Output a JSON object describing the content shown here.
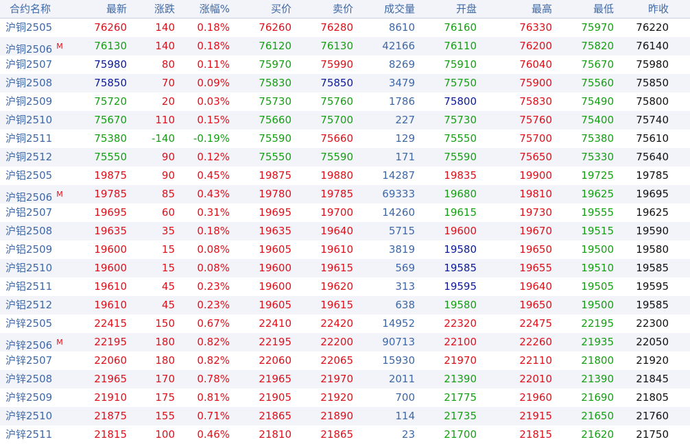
{
  "colors": {
    "up": "#e0101a",
    "down": "#14a012",
    "flat": "#0c1a9a",
    "volume": "#3e68a8",
    "prev_close": "#111111",
    "header_text": "#3e68a8",
    "header_bg": "#f2f4fa",
    "stripe": "#f2f4fa"
  },
  "columns": [
    "合约名称",
    "最新",
    "涨跌",
    "涨幅%",
    "买价",
    "卖价",
    "成交量",
    "开盘",
    "最高",
    "最低",
    "昨收"
  ],
  "rows": [
    {
      "name": "沪铜2505",
      "suffix": "",
      "latest": "76260",
      "change": "140",
      "pct": "0.18%",
      "bid": "76260",
      "ask": "76280",
      "volume": "8610",
      "open": "76160",
      "high": "76330",
      "low": "75970",
      "prev": "76220"
    },
    {
      "name": "沪铜2506",
      "suffix": "M",
      "latest": "76130",
      "change": "140",
      "pct": "0.18%",
      "bid": "76120",
      "ask": "76130",
      "volume": "42166",
      "open": "76110",
      "high": "76200",
      "low": "75820",
      "prev": "76140"
    },
    {
      "name": "沪铜2507",
      "suffix": "",
      "latest": "75980",
      "change": "80",
      "pct": "0.11%",
      "bid": "75970",
      "ask": "75990",
      "volume": "8269",
      "open": "75910",
      "high": "76040",
      "low": "75670",
      "prev": "75980"
    },
    {
      "name": "沪铜2508",
      "suffix": "",
      "latest": "75850",
      "change": "70",
      "pct": "0.09%",
      "bid": "75830",
      "ask": "75850",
      "volume": "3479",
      "open": "75750",
      "high": "75900",
      "low": "75560",
      "prev": "75850"
    },
    {
      "name": "沪铜2509",
      "suffix": "",
      "latest": "75720",
      "change": "20",
      "pct": "0.03%",
      "bid": "75730",
      "ask": "75760",
      "volume": "1786",
      "open": "75800",
      "high": "75830",
      "low": "75490",
      "prev": "75800"
    },
    {
      "name": "沪铜2510",
      "suffix": "",
      "latest": "75670",
      "change": "110",
      "pct": "0.15%",
      "bid": "75660",
      "ask": "75700",
      "volume": "227",
      "open": "75730",
      "high": "75760",
      "low": "75400",
      "prev": "75740"
    },
    {
      "name": "沪铜2511",
      "suffix": "",
      "latest": "75380",
      "change": "-140",
      "pct": "-0.19%",
      "bid": "75590",
      "ask": "75660",
      "volume": "129",
      "open": "75550",
      "high": "75700",
      "low": "75380",
      "prev": "75610"
    },
    {
      "name": "沪铜2512",
      "suffix": "",
      "latest": "75550",
      "change": "90",
      "pct": "0.12%",
      "bid": "75550",
      "ask": "75590",
      "volume": "171",
      "open": "75590",
      "high": "75650",
      "low": "75330",
      "prev": "75640"
    },
    {
      "name": "沪铝2505",
      "suffix": "",
      "latest": "19875",
      "change": "90",
      "pct": "0.45%",
      "bid": "19875",
      "ask": "19880",
      "volume": "14287",
      "open": "19835",
      "high": "19900",
      "low": "19725",
      "prev": "19785"
    },
    {
      "name": "沪铝2506",
      "suffix": "M",
      "latest": "19785",
      "change": "85",
      "pct": "0.43%",
      "bid": "19780",
      "ask": "19785",
      "volume": "69333",
      "open": "19680",
      "high": "19810",
      "low": "19625",
      "prev": "19695"
    },
    {
      "name": "沪铝2507",
      "suffix": "",
      "latest": "19695",
      "change": "60",
      "pct": "0.31%",
      "bid": "19695",
      "ask": "19700",
      "volume": "14260",
      "open": "19615",
      "high": "19730",
      "low": "19555",
      "prev": "19625"
    },
    {
      "name": "沪铝2508",
      "suffix": "",
      "latest": "19635",
      "change": "35",
      "pct": "0.18%",
      "bid": "19635",
      "ask": "19640",
      "volume": "5715",
      "open": "19600",
      "high": "19670",
      "low": "19515",
      "prev": "19590"
    },
    {
      "name": "沪铝2509",
      "suffix": "",
      "latest": "19600",
      "change": "15",
      "pct": "0.08%",
      "bid": "19605",
      "ask": "19610",
      "volume": "3819",
      "open": "19580",
      "high": "19650",
      "low": "19500",
      "prev": "19580"
    },
    {
      "name": "沪铝2510",
      "suffix": "",
      "latest": "19600",
      "change": "15",
      "pct": "0.08%",
      "bid": "19600",
      "ask": "19615",
      "volume": "569",
      "open": "19585",
      "high": "19655",
      "low": "19510",
      "prev": "19585"
    },
    {
      "name": "沪铝2511",
      "suffix": "",
      "latest": "19610",
      "change": "45",
      "pct": "0.23%",
      "bid": "19600",
      "ask": "19620",
      "volume": "313",
      "open": "19595",
      "high": "19640",
      "low": "19505",
      "prev": "19595"
    },
    {
      "name": "沪铝2512",
      "suffix": "",
      "latest": "19610",
      "change": "45",
      "pct": "0.23%",
      "bid": "19605",
      "ask": "19615",
      "volume": "638",
      "open": "19580",
      "high": "19650",
      "low": "19500",
      "prev": "19585"
    },
    {
      "name": "沪锌2505",
      "suffix": "",
      "latest": "22415",
      "change": "150",
      "pct": "0.67%",
      "bid": "22410",
      "ask": "22420",
      "volume": "14952",
      "open": "22320",
      "high": "22475",
      "low": "22195",
      "prev": "22300"
    },
    {
      "name": "沪锌2506",
      "suffix": "M",
      "latest": "22195",
      "change": "180",
      "pct": "0.82%",
      "bid": "22195",
      "ask": "22200",
      "volume": "90713",
      "open": "22100",
      "high": "22260",
      "low": "21935",
      "prev": "22050"
    },
    {
      "name": "沪锌2507",
      "suffix": "",
      "latest": "22060",
      "change": "180",
      "pct": "0.82%",
      "bid": "22060",
      "ask": "22065",
      "volume": "15930",
      "open": "21970",
      "high": "22110",
      "low": "21800",
      "prev": "21920"
    },
    {
      "name": "沪锌2508",
      "suffix": "",
      "latest": "21965",
      "change": "170",
      "pct": "0.78%",
      "bid": "21965",
      "ask": "21970",
      "volume": "2011",
      "open": "21390",
      "high": "22010",
      "low": "21390",
      "prev": "21845"
    },
    {
      "name": "沪锌2509",
      "suffix": "",
      "latest": "21910",
      "change": "175",
      "pct": "0.81%",
      "bid": "21905",
      "ask": "21920",
      "volume": "700",
      "open": "21775",
      "high": "21960",
      "low": "21690",
      "prev": "21805"
    },
    {
      "name": "沪锌2510",
      "suffix": "",
      "latest": "21875",
      "change": "155",
      "pct": "0.71%",
      "bid": "21865",
      "ask": "21890",
      "volume": "114",
      "open": "21735",
      "high": "21915",
      "low": "21650",
      "prev": "21760"
    },
    {
      "name": "沪锌2511",
      "suffix": "",
      "latest": "21815",
      "change": "100",
      "pct": "0.46%",
      "bid": "21810",
      "ask": "21865",
      "volume": "23",
      "open": "21700",
      "high": "21815",
      "low": "21620",
      "prev": "21750"
    }
  ]
}
